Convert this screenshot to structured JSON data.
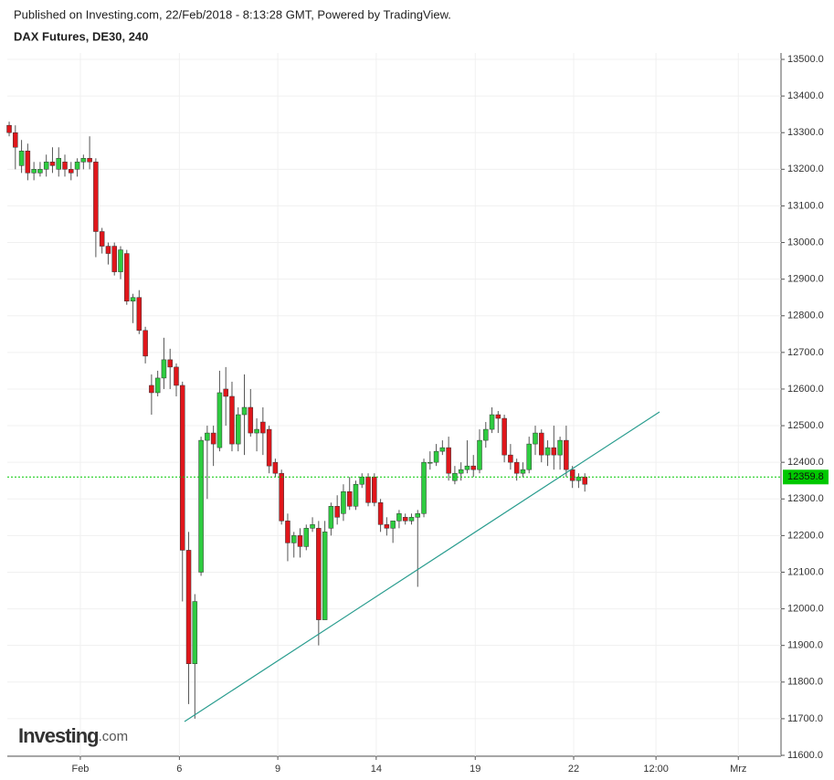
{
  "chart_data": {
    "type": "candlestick",
    "header": "Published on Investing.com, 22/Feb/2018 - 8:13:28 GMT, Powered by TradingView.",
    "title": "DAX Futures, DE30, 240",
    "logo": "Investing",
    "logo_suffix": ".com",
    "open": [
      13320,
      13300,
      13210,
      13250,
      13190,
      13190,
      13200,
      13220,
      13200,
      13220,
      13200,
      13200,
      13220,
      13230,
      13220,
      13030,
      12990,
      12990,
      12920,
      12970,
      12840,
      12850,
      12760,
      12610,
      12590,
      12630,
      12680,
      12660,
      12610,
      12160,
      11850,
      12100,
      12460,
      12480,
      12440,
      12600,
      12580,
      12450,
      12530,
      12550,
      12480,
      12510,
      12490,
      12400,
      12370,
      12240,
      12180,
      12200,
      12170,
      12220,
      12220,
      11970,
      12220,
      12280,
      12260,
      12320,
      12280,
      12340,
      12360,
      12360,
      12290,
      12230,
      12220,
      12240,
      12250,
      12240,
      12250,
      12260,
      12400,
      12400,
      12430,
      12440,
      12350,
      12370,
      12380,
      12390,
      12380,
      12460,
      12490,
      12530,
      12520,
      12420,
      12400,
      12370,
      12380,
      12450,
      12480,
      12420,
      12440,
      12420,
      12460,
      12380,
      12350,
      12360
    ],
    "high": [
      13330,
      13320,
      13280,
      13270,
      13220,
      13220,
      13240,
      13260,
      13260,
      13240,
      13220,
      13230,
      13240,
      13290,
      13230,
      13040,
      13000,
      13000,
      12990,
      12980,
      12860,
      12870,
      12770,
      12640,
      12650,
      12740,
      12710,
      12670,
      12620,
      12210,
      12040,
      12470,
      12500,
      12500,
      12650,
      12660,
      12620,
      12550,
      12640,
      12600,
      12520,
      12550,
      12500,
      12410,
      12380,
      12260,
      12210,
      12220,
      12230,
      12250,
      12240,
      12240,
      12290,
      12310,
      12340,
      12360,
      12350,
      12370,
      12370,
      12370,
      12300,
      12250,
      12240,
      12270,
      12260,
      12260,
      12270,
      12410,
      12430,
      12450,
      12460,
      12470,
      12390,
      12400,
      12460,
      12420,
      12490,
      12510,
      12550,
      12540,
      12530,
      12450,
      12410,
      12400,
      12470,
      12500,
      12490,
      12460,
      12500,
      12470,
      12500,
      12390,
      12370,
      12370
    ],
    "low": [
      13290,
      13200,
      13190,
      13170,
      13170,
      13180,
      13180,
      13190,
      13180,
      13180,
      13170,
      13180,
      13200,
      13200,
      12960,
      12970,
      12940,
      12910,
      12900,
      12830,
      12780,
      12750,
      12670,
      12530,
      12580,
      12600,
      12600,
      12580,
      12020,
      11740,
      11700,
      12090,
      12300,
      12390,
      12430,
      12500,
      12430,
      12430,
      12420,
      12470,
      12430,
      12420,
      12370,
      12360,
      12230,
      12130,
      12140,
      12140,
      12160,
      12210,
      11900,
      11970,
      12200,
      12230,
      12240,
      12270,
      12270,
      12330,
      12280,
      12280,
      12210,
      12200,
      12180,
      12220,
      12230,
      12230,
      12060,
      12250,
      12380,
      12390,
      12420,
      12350,
      12340,
      12350,
      12370,
      12360,
      12370,
      12440,
      12480,
      12480,
      12400,
      12380,
      12350,
      12360,
      12370,
      12420,
      12400,
      12390,
      12380,
      12380,
      12360,
      12330,
      12330,
      12320
    ],
    "close": [
      13300,
      13260,
      13250,
      13190,
      13200,
      13200,
      13220,
      13210,
      13230,
      13200,
      13190,
      13220,
      13230,
      13220,
      13030,
      12990,
      12970,
      12920,
      12980,
      12840,
      12850,
      12760,
      12690,
      12590,
      12630,
      12680,
      12660,
      12610,
      12160,
      11850,
      12020,
      12460,
      12480,
      12450,
      12590,
      12580,
      12450,
      12530,
      12550,
      12480,
      12490,
      12480,
      12390,
      12370,
      12240,
      12180,
      12200,
      12170,
      12220,
      12230,
      11970,
      12210,
      12280,
      12250,
      12320,
      12280,
      12340,
      12360,
      12290,
      12290,
      12230,
      12220,
      12240,
      12260,
      12240,
      12250,
      12260,
      12400,
      12400,
      12430,
      12440,
      12370,
      12370,
      12380,
      12390,
      12380,
      12460,
      12490,
      12530,
      12520,
      12420,
      12400,
      12370,
      12380,
      12450,
      12480,
      12420,
      12440,
      12420,
      12460,
      12380,
      12350,
      12360,
      12340
    ],
    "up_color": "#2ecc40",
    "down_color": "#e0161b",
    "xlim": [
      -0.3,
      124.7
    ],
    "xticks": [
      {
        "value": 11.5,
        "label": "Feb"
      },
      {
        "value": 27.5,
        "label": "6"
      },
      {
        "value": 43.4,
        "label": "9"
      },
      {
        "value": 59.3,
        "label": "14"
      },
      {
        "value": 75.3,
        "label": "19"
      },
      {
        "value": 91.2,
        "label": "22"
      },
      {
        "value": 104.5,
        "label": "12:00"
      },
      {
        "value": 117.8,
        "label": "Mrz"
      }
    ],
    "ylim": [
      11597.5,
      13517.5
    ],
    "yticks": [
      {
        "value": 11600,
        "label": "11600.0"
      },
      {
        "value": 11700,
        "label": "11700.0"
      },
      {
        "value": 11800,
        "label": "11800.0"
      },
      {
        "value": 11900,
        "label": "11900.0"
      },
      {
        "value": 12000,
        "label": "12000.0"
      },
      {
        "value": 12100,
        "label": "12100.0"
      },
      {
        "value": 12200,
        "label": "12200.0"
      },
      {
        "value": 12300,
        "label": "12300.0"
      },
      {
        "value": 12400,
        "label": "12400.0"
      },
      {
        "value": 12500,
        "label": "12500.0"
      },
      {
        "value": 12600,
        "label": "12600.0"
      },
      {
        "value": 12700,
        "label": "12700.0"
      },
      {
        "value": 12800,
        "label": "12800.0"
      },
      {
        "value": 12900,
        "label": "12900.0"
      },
      {
        "value": 13000,
        "label": "13000.0"
      },
      {
        "value": 13100,
        "label": "13100.0"
      },
      {
        "value": 13200,
        "label": "13200.0"
      },
      {
        "value": 13300,
        "label": "13300.0"
      },
      {
        "value": 13400,
        "label": "13400.0"
      },
      {
        "value": 13500,
        "label": "13500.0"
      }
    ],
    "last_price": 12359.8,
    "last_price_color": "#00c800",
    "grid": true
  }
}
